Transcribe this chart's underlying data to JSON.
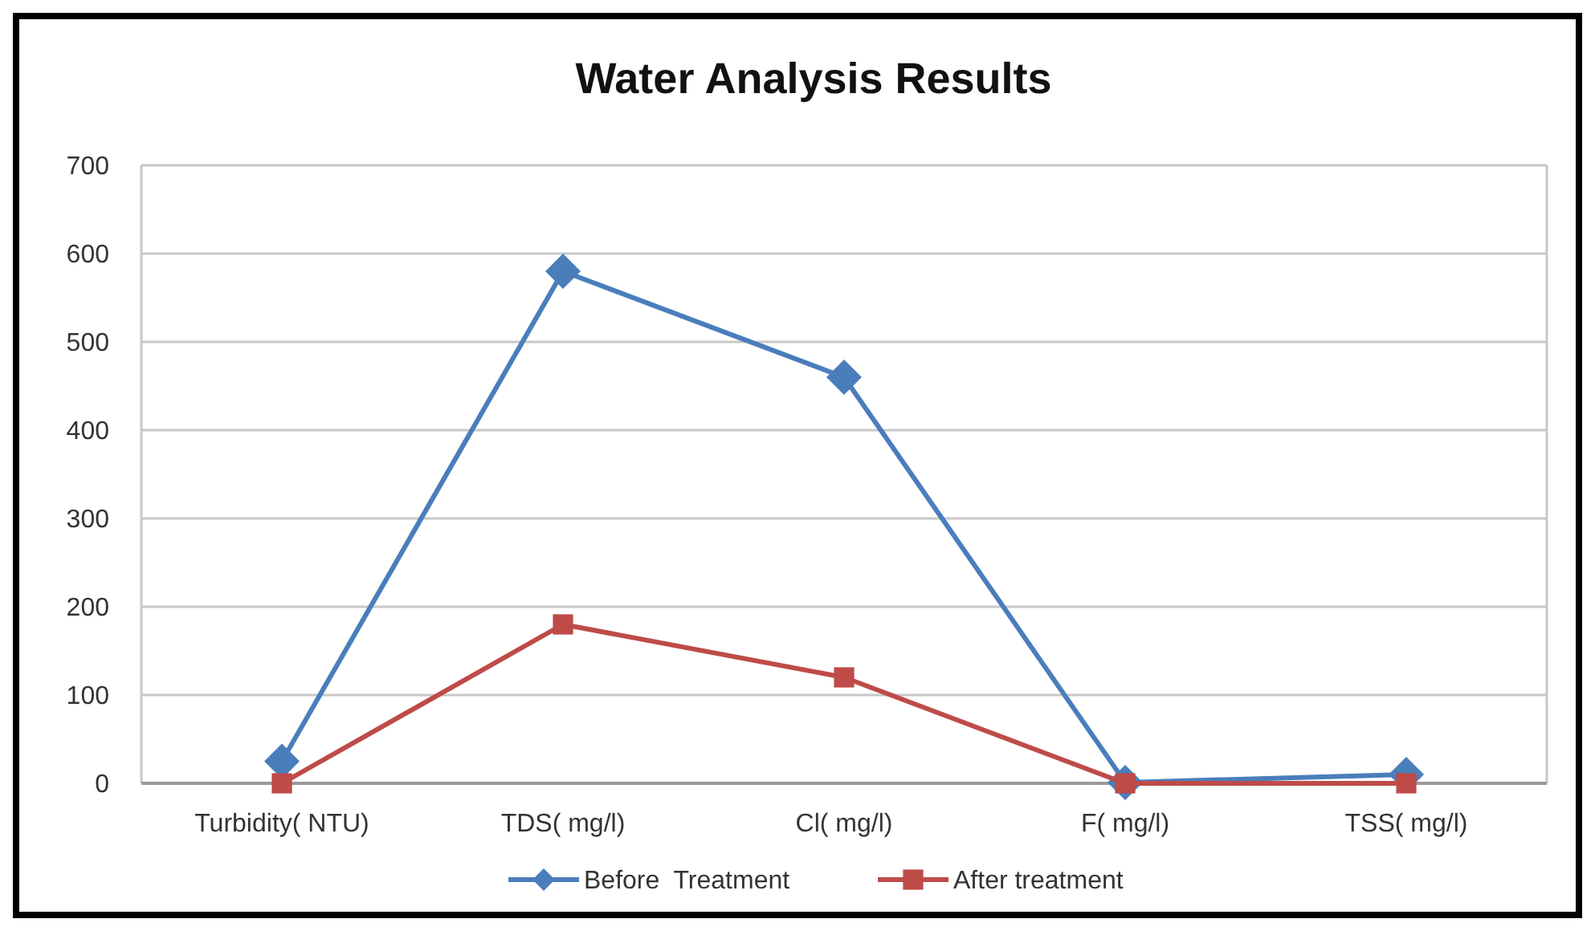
{
  "chart_data": {
    "type": "line",
    "title": "Water Analysis Results",
    "categories": [
      "Turbidity( NTU)",
      "TDS( mg/l)",
      "Cl( mg/l)",
      "F( mg/l)",
      "TSS( mg/l)"
    ],
    "series": [
      {
        "name": "Before  Treatment",
        "color": "#4a7ebb",
        "marker": "diamond",
        "values": [
          25,
          580,
          460,
          1,
          10
        ]
      },
      {
        "name": "After treatment",
        "color": "#be4b48",
        "marker": "square",
        "values": [
          0,
          180,
          120,
          0,
          0
        ]
      }
    ],
    "ylim": [
      0,
      700
    ],
    "yticks": [
      0,
      100,
      200,
      300,
      400,
      500,
      600,
      700
    ],
    "grid": "y",
    "legend": "bottom",
    "line_style": "solid"
  }
}
